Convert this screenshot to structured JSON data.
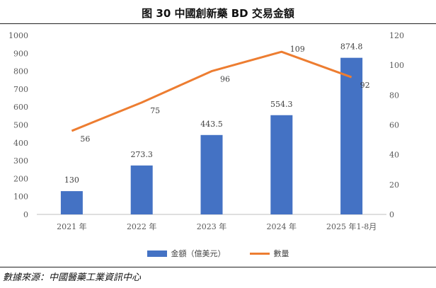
{
  "header": {
    "title": "图 30 中國創新藥 BD 交易金額"
  },
  "source": "數據來源：中國醫藥工業資訊中心",
  "colors": {
    "bar": "#4472C4",
    "line": "#ED7D31",
    "axis_text": "#595959",
    "grid": "#D9D9D9"
  },
  "chart_data": {
    "type": "bar+line",
    "title": "图 30 中國創新藥 BD 交易金額",
    "categories": [
      "2021 年",
      "2022 年",
      "2023 年",
      "2024 年",
      "2025 年1-8月"
    ],
    "series": [
      {
        "name": "金額（億美元）",
        "type": "bar",
        "axis": "left",
        "values": [
          130,
          273.3,
          443.5,
          554.3,
          874.8
        ],
        "labels": [
          "130",
          "273.3",
          "443.5",
          "554.3",
          "874.8"
        ]
      },
      {
        "name": "數量",
        "type": "line",
        "axis": "right",
        "values": [
          56,
          75,
          96,
          109,
          92
        ],
        "labels": [
          "56",
          "75",
          "96",
          "109",
          "92"
        ]
      }
    ],
    "y_left": {
      "min": 0,
      "max": 1000,
      "step": 100,
      "ticks": [
        "0",
        "100",
        "200",
        "300",
        "400",
        "500",
        "600",
        "700",
        "800",
        "900",
        "1000"
      ]
    },
    "y_right": {
      "min": 0,
      "max": 120,
      "step": 20,
      "ticks": [
        "0",
        "20",
        "40",
        "60",
        "80",
        "100",
        "120"
      ]
    },
    "legend_position": "bottom",
    "grid": false
  }
}
